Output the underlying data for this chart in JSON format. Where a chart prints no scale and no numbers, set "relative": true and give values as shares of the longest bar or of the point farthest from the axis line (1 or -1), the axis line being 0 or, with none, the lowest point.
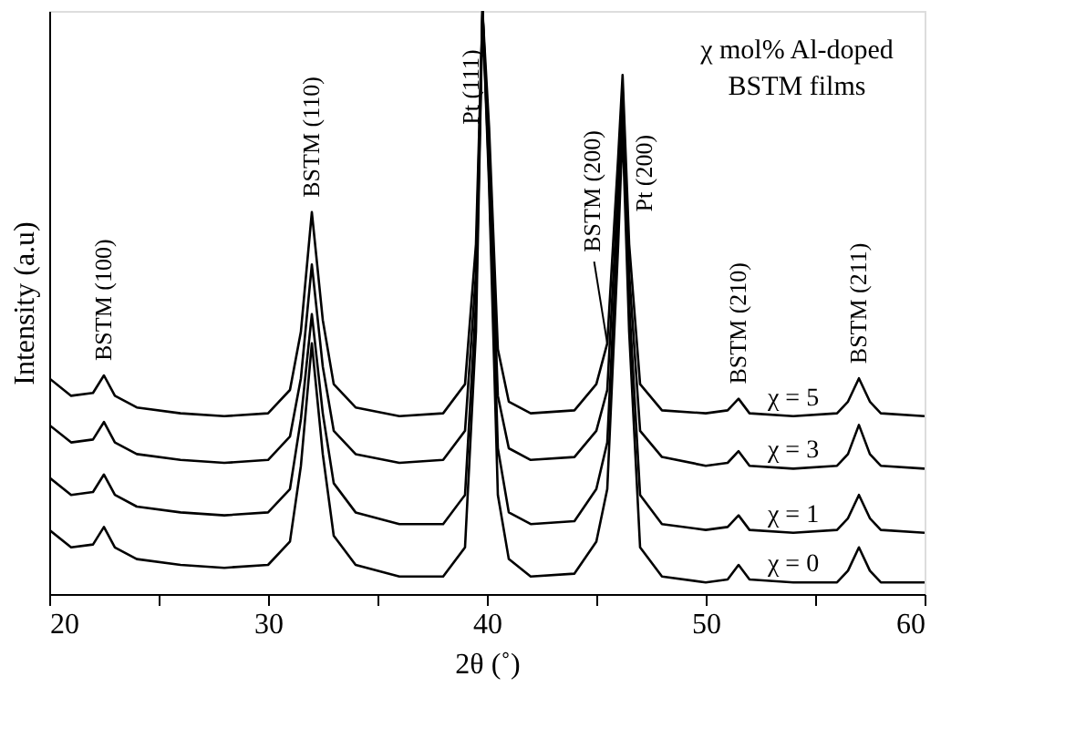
{
  "chart_data": {
    "type": "line",
    "relative": true,
    "xlabel": "2θ (˚)",
    "ylabel": "Intensity (a.u)",
    "xlim": [
      20,
      60
    ],
    "xticks": [
      20,
      {
        "value": 25,
        "label": null
      },
      30,
      {
        "value": 35,
        "label": null
      },
      40,
      {
        "value": 45,
        "label": null
      },
      50,
      {
        "value": 55,
        "label": null
      },
      60
    ],
    "tick_labels": "x",
    "legend": false,
    "grid": false,
    "line_style": "solid",
    "x": [
      20,
      21,
      22,
      22.5,
      23,
      24,
      26,
      28,
      30,
      31,
      31.5,
      32,
      32.5,
      33,
      34,
      36,
      38,
      39,
      39.5,
      39.8,
      40.1,
      40.5,
      41,
      42,
      44,
      45,
      45.5,
      46,
      46.2,
      46.5,
      47,
      48,
      50,
      51,
      51.5,
      52,
      54,
      56,
      56.5,
      57,
      57.5,
      58,
      60
    ],
    "series": [
      {
        "name": "χ = 5",
        "color": "#000000",
        "values": [
          0.37,
          0.34,
          0.345,
          0.375,
          0.34,
          0.32,
          0.31,
          0.305,
          0.31,
          0.35,
          0.45,
          0.655,
          0.47,
          0.36,
          0.32,
          0.305,
          0.31,
          0.36,
          0.6,
          1,
          0.8,
          0.42,
          0.33,
          0.31,
          0.315,
          0.36,
          0.43,
          0.75,
          0.89,
          0.6,
          0.36,
          0.315,
          0.31,
          0.315,
          0.335,
          0.31,
          0.305,
          0.31,
          0.33,
          0.37,
          0.33,
          0.31,
          0.305
        ]
      },
      {
        "name": "χ = 3",
        "color": "#000000",
        "values": [
          0.29,
          0.26,
          0.265,
          0.295,
          0.26,
          0.24,
          0.23,
          0.225,
          0.23,
          0.27,
          0.37,
          0.565,
          0.39,
          0.28,
          0.24,
          0.225,
          0.23,
          0.28,
          0.55,
          1,
          0.75,
          0.34,
          0.25,
          0.23,
          0.235,
          0.28,
          0.35,
          0.7,
          0.86,
          0.55,
          0.28,
          0.235,
          0.22,
          0.225,
          0.245,
          0.22,
          0.215,
          0.22,
          0.24,
          0.29,
          0.24,
          0.22,
          0.215
        ]
      },
      {
        "name": "χ = 1",
        "color": "#000000",
        "values": [
          0.2,
          0.17,
          0.175,
          0.205,
          0.17,
          0.15,
          0.14,
          0.135,
          0.14,
          0.18,
          0.3,
          0.48,
          0.31,
          0.19,
          0.14,
          0.12,
          0.12,
          0.17,
          0.5,
          1,
          0.72,
          0.25,
          0.14,
          0.12,
          0.125,
          0.18,
          0.26,
          0.65,
          0.83,
          0.5,
          0.17,
          0.12,
          0.11,
          0.115,
          0.135,
          0.11,
          0.105,
          0.11,
          0.13,
          0.17,
          0.13,
          0.11,
          0.105
        ]
      },
      {
        "name": "χ = 0",
        "color": "#000000",
        "values": [
          0.11,
          0.08,
          0.085,
          0.115,
          0.08,
          0.06,
          0.05,
          0.045,
          0.05,
          0.09,
          0.22,
          0.43,
          0.24,
          0.1,
          0.05,
          0.03,
          0.03,
          0.08,
          0.45,
          1,
          0.7,
          0.17,
          0.06,
          0.03,
          0.035,
          0.09,
          0.18,
          0.6,
          0.8,
          0.45,
          0.08,
          0.03,
          0.02,
          0.025,
          0.05,
          0.025,
          0.02,
          0.02,
          0.04,
          0.08,
          0.04,
          0.02,
          0.02
        ]
      }
    ],
    "annotations": [
      "χ mol% Al-doped\nBSTM films",
      {
        "text": "BSTM (100)",
        "x": 22.5,
        "y": 0.375
      },
      {
        "text": "BSTM (110)",
        "x": 32,
        "y": 0.655
      },
      {
        "text": "Pt (111)",
        "x": 39.3,
        "y": 0.78
      },
      {
        "text": "BSTM (200)",
        "x": 45.5,
        "y": 0.43
      },
      {
        "text": "Pt (200)",
        "x": 46.2,
        "y": 0.89
      },
      {
        "text": "BSTM (210)",
        "x": 51.5,
        "y": 0.335
      },
      {
        "text": "BSTM (211)",
        "x": 57,
        "y": 0.37
      }
    ]
  }
}
